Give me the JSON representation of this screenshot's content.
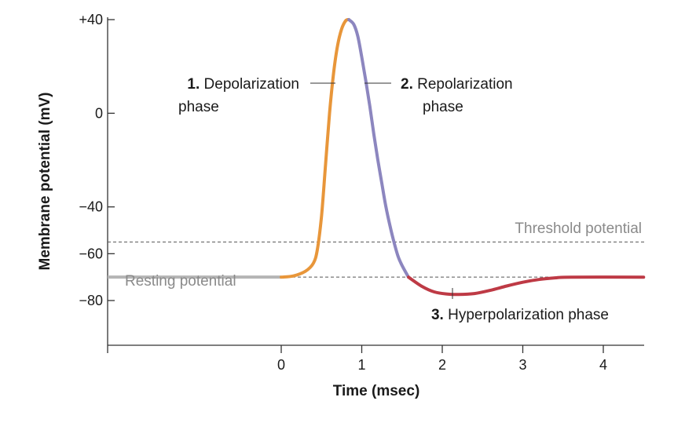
{
  "chart_data": {
    "type": "line",
    "title": "",
    "xlabel": "Time (msec)",
    "ylabel": "Membrane potential (mV)",
    "xlim": [
      -2.15,
      4.5
    ],
    "ylim": [
      -98,
      40
    ],
    "x_ticks": [
      0,
      1,
      2,
      3,
      4
    ],
    "x_tick_labels": [
      "0",
      "1",
      "2",
      "3",
      "4"
    ],
    "y_ticks": [
      40,
      0,
      -40,
      -60,
      -80
    ],
    "y_tick_labels": [
      "+40",
      "0",
      "−40",
      "−60",
      "−80"
    ],
    "grid": false,
    "resting_potential": {
      "label": "Resting potential",
      "value": -70,
      "color": "#b5b5b5"
    },
    "threshold_potential": {
      "label": "Threshold potential",
      "value": -55
    },
    "series": [
      {
        "color": "#e8963a",
        "points": [
          [
            0,
            -70
          ],
          [
            0.15,
            -69.5
          ],
          [
            0.3,
            -67.5
          ],
          [
            0.4,
            -64
          ],
          [
            0.45,
            -58
          ],
          [
            0.5,
            -44
          ],
          [
            0.55,
            -22
          ],
          [
            0.6,
            0
          ],
          [
            0.65,
            17
          ],
          [
            0.7,
            29
          ],
          [
            0.75,
            36
          ],
          [
            0.8,
            39.5
          ],
          [
            0.84,
            40
          ]
        ]
      },
      {
        "color": "#8c86bf",
        "points": [
          [
            0.84,
            40
          ],
          [
            0.9,
            38
          ],
          [
            0.95,
            33
          ],
          [
            1.0,
            24
          ],
          [
            1.05,
            14
          ],
          [
            1.1,
            3
          ],
          [
            1.15,
            -9
          ],
          [
            1.2,
            -20
          ],
          [
            1.25,
            -30
          ],
          [
            1.3,
            -40
          ],
          [
            1.35,
            -48
          ],
          [
            1.4,
            -55
          ],
          [
            1.45,
            -61
          ],
          [
            1.5,
            -65
          ],
          [
            1.58,
            -70
          ]
        ]
      },
      {
        "color": "#be3a45",
        "points": [
          [
            1.58,
            -70
          ],
          [
            1.75,
            -74
          ],
          [
            1.9,
            -76.3
          ],
          [
            2.05,
            -77.2
          ],
          [
            2.2,
            -77.4
          ],
          [
            2.4,
            -77
          ],
          [
            2.6,
            -75.6
          ],
          [
            2.8,
            -73.8
          ],
          [
            3.0,
            -72.2
          ],
          [
            3.2,
            -71
          ],
          [
            3.4,
            -70.3
          ],
          [
            3.6,
            -70
          ],
          [
            4.5,
            -70
          ]
        ]
      }
    ],
    "annotations": [
      {
        "number": "1.",
        "text": "Depolarization",
        "line2": "phase"
      },
      {
        "number": "2.",
        "text": "Repolarization",
        "line2": "phase"
      },
      {
        "number": "3.",
        "text": "Hyperpolarization phase"
      }
    ]
  }
}
